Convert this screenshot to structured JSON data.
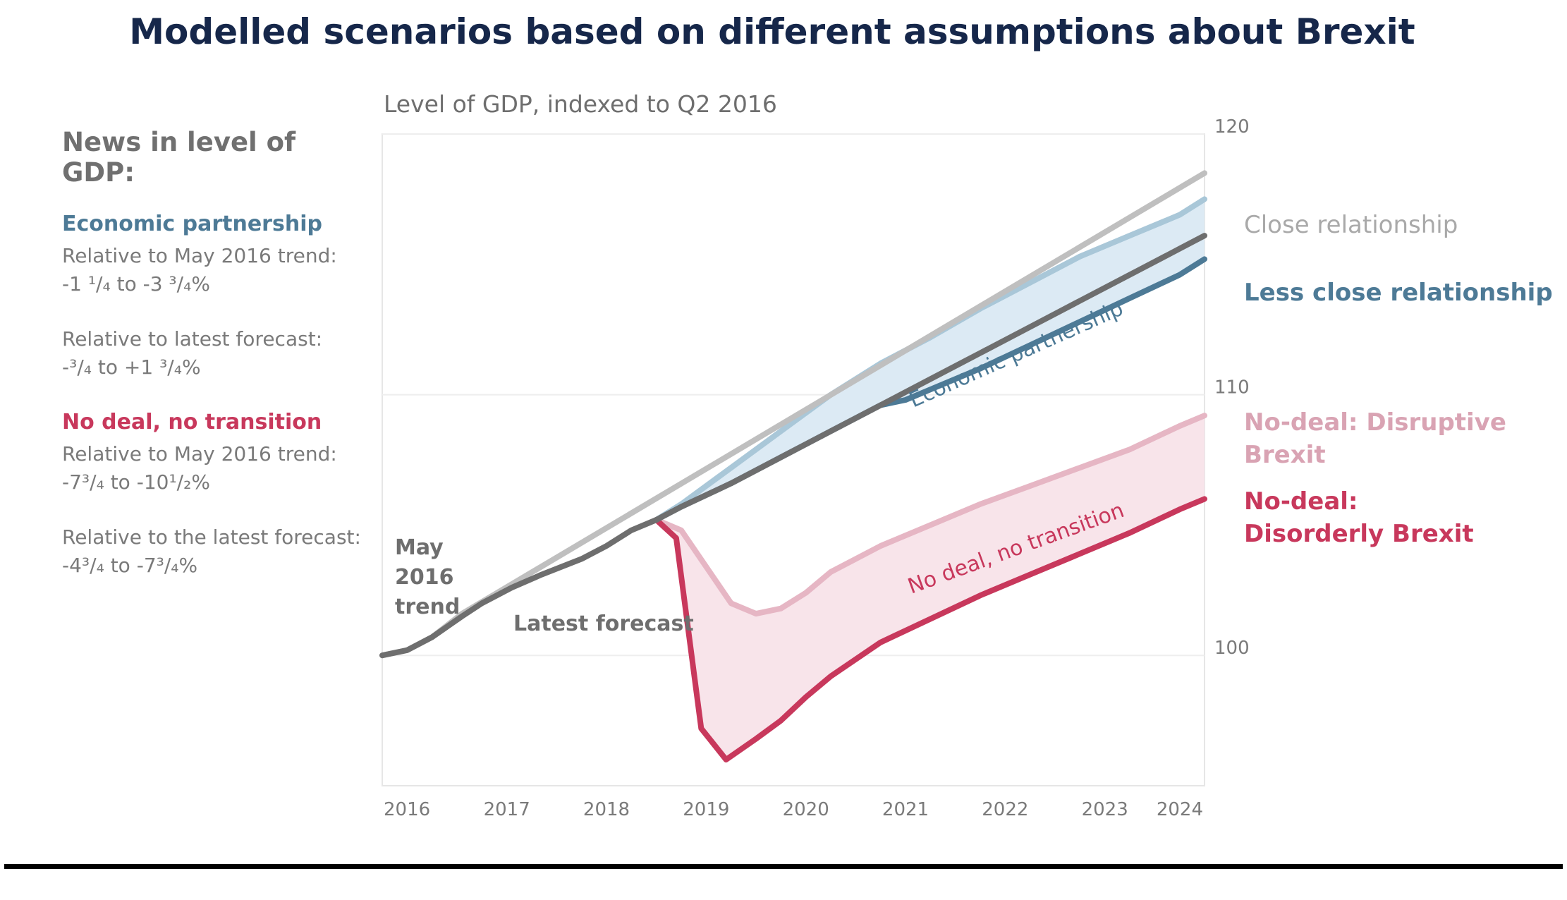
{
  "title": "Modelled scenarios based on different assumptions about Brexit",
  "sidebar": {
    "heading": "News in level of GDP:",
    "groups": [
      {
        "name": "Economic partnership",
        "color": "#4d7a96",
        "items": [
          {
            "label": "Relative to May 2016 trend:",
            "value": "-1 ¹/₄ to -3 ³/₄%"
          },
          {
            "label": "Relative to latest forecast:",
            "value": "-³/₄ to +1 ³/₄%"
          }
        ]
      },
      {
        "name": "No deal, no transition",
        "color": "#c8385c",
        "items": [
          {
            "label": "Relative to May 2016 trend:",
            "value": "-7³/₄ to -10¹/₂%"
          },
          {
            "label": "Relative to the latest forecast:",
            "value": "-4³/₄ to -7³/₄%"
          }
        ]
      }
    ]
  },
  "chart_data": {
    "type": "line",
    "title": "Modelled scenarios based on different assumptions about Brexit",
    "subtitle": "Level of GDP, indexed to Q2 2016",
    "x_ticks": [
      "2016",
      "2017",
      "2018",
      "2019",
      "2020",
      "2021",
      "2022",
      "2023",
      "2024"
    ],
    "y_ticks": [
      100,
      110,
      120
    ],
    "ylim": [
      95,
      120
    ],
    "xlim": [
      2016.0,
      2024.25
    ],
    "grid": true,
    "series": [
      {
        "name": "May 2016 trend",
        "color": "#bfbfbf",
        "x": [
          2016.0,
          2016.25,
          2016.5,
          2016.8,
          2024.25
        ],
        "y": [
          100.0,
          100.2,
          100.7,
          101.6,
          118.5
        ]
      },
      {
        "name": "Latest forecast",
        "color": "#6e6e6e",
        "x": [
          2016.0,
          2016.25,
          2016.5,
          2016.8,
          2017.0,
          2017.3,
          2017.6,
          2017.8,
          2018.0,
          2018.25,
          2018.5,
          2018.75,
          2019.0,
          2019.5,
          2020.0,
          2020.5,
          2021.0,
          2021.5,
          2022.0,
          2022.5,
          2023.0,
          2023.5,
          2024.0,
          2024.25
        ],
        "y": [
          100.0,
          100.2,
          100.7,
          101.5,
          102.0,
          102.6,
          103.1,
          103.4,
          103.7,
          104.2,
          104.8,
          105.2,
          105.7,
          106.6,
          107.6,
          108.6,
          109.6,
          110.6,
          111.6,
          112.6,
          113.6,
          114.6,
          115.6,
          116.1
        ]
      },
      {
        "name": "Close relationship",
        "color": "#a9c7d8",
        "x": [
          2018.75,
          2019.0,
          2019.5,
          2020.0,
          2020.5,
          2021.0,
          2021.5,
          2022.0,
          2022.5,
          2023.0,
          2023.5,
          2024.0,
          2024.25
        ],
        "y": [
          105.2,
          105.8,
          107.2,
          108.6,
          110.0,
          111.2,
          112.2,
          113.3,
          114.3,
          115.3,
          116.1,
          116.9,
          117.5
        ]
      },
      {
        "name": "Less close relationship",
        "color": "#4d7a96",
        "x": [
          2018.75,
          2019.0,
          2019.5,
          2020.0,
          2020.5,
          2021.0,
          2021.25,
          2021.5,
          2022.0,
          2022.5,
          2023.0,
          2023.5,
          2024.0,
          2024.25
        ],
        "y": [
          105.2,
          105.7,
          106.6,
          107.6,
          108.6,
          109.6,
          109.8,
          110.2,
          111.0,
          111.9,
          112.8,
          113.7,
          114.6,
          115.2
        ]
      },
      {
        "name": "No-deal: Disruptive Brexit",
        "color": "#e6b6c4",
        "x": [
          2018.75,
          2019.0,
          2019.5,
          2019.75,
          2020.0,
          2020.25,
          2020.5,
          2021.0,
          2021.5,
          2022.0,
          2022.5,
          2023.0,
          2023.5,
          2024.0,
          2024.25
        ],
        "y": [
          105.2,
          104.8,
          102.0,
          101.6,
          101.8,
          102.4,
          103.2,
          104.2,
          105.0,
          105.8,
          106.5,
          107.2,
          107.9,
          108.8,
          109.2
        ]
      },
      {
        "name": "No-deal: Disorderly Brexit",
        "color": "#c8385c",
        "x": [
          2018.75,
          2018.95,
          2019.2,
          2019.45,
          2019.75,
          2020.0,
          2020.25,
          2020.5,
          2021.0,
          2021.5,
          2022.0,
          2022.5,
          2023.0,
          2023.5,
          2024.0,
          2024.25
        ],
        "y": [
          105.2,
          104.5,
          97.2,
          96.0,
          96.8,
          97.5,
          98.4,
          99.2,
          100.5,
          101.4,
          102.3,
          103.1,
          103.9,
          104.7,
          105.6,
          106.0
        ]
      }
    ],
    "bands": [
      {
        "name": "Economic partnership",
        "color": "#dceaf4",
        "upper": "Close relationship",
        "lower": "Less close relationship"
      },
      {
        "name": "No deal, no transition",
        "color": "#f8e4ea",
        "upper": "No-deal: Disruptive Brexit",
        "lower": "No-deal: Disorderly Brexit"
      }
    ],
    "annotations": [
      {
        "text": "May",
        "color": "#6e6e6e"
      },
      {
        "text": "2016",
        "color": "#6e6e6e"
      },
      {
        "text": "trend",
        "color": "#6e6e6e"
      },
      {
        "text": "Latest forecast",
        "color": "#6e6e6e"
      },
      {
        "text": "Economic partnership",
        "color": "#4d7a96"
      },
      {
        "text": "No deal, no transition",
        "color": "#c8385c"
      }
    ],
    "right_labels": [
      {
        "text": "Close relationship",
        "color": "#a9a9a9"
      },
      {
        "text": "Less close relationship",
        "color": "#4d7a96"
      },
      {
        "text": "No-deal: Disruptive",
        "color": "#d9a3b3"
      },
      {
        "text": "Brexit",
        "color": "#d9a3b3"
      },
      {
        "text": "No-deal:",
        "color": "#c8385c"
      },
      {
        "text": "Disorderly Brexit",
        "color": "#c8385c"
      }
    ]
  }
}
